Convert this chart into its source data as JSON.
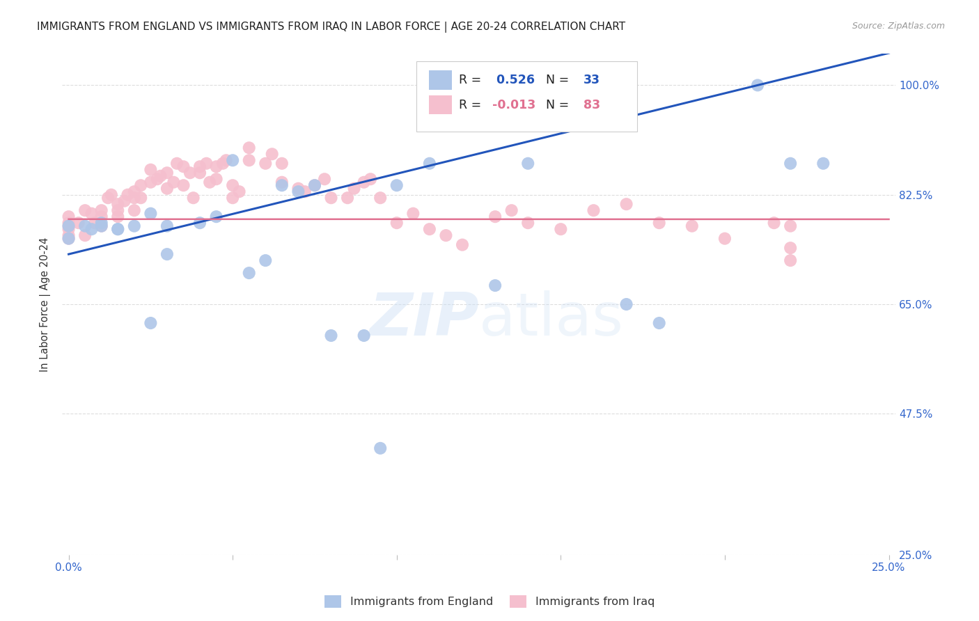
{
  "title": "IMMIGRANTS FROM ENGLAND VS IMMIGRANTS FROM IRAQ IN LABOR FORCE | AGE 20-24 CORRELATION CHART",
  "source": "Source: ZipAtlas.com",
  "ylabel": "In Labor Force | Age 20-24",
  "xlim": [
    0.0,
    0.25
  ],
  "ylim": [
    0.25,
    1.05
  ],
  "ytick_vals": [
    0.25,
    0.475,
    0.65,
    0.825,
    1.0
  ],
  "ytick_labels": [
    "25.0%",
    "47.5%",
    "65.0%",
    "82.5%",
    "100.0%"
  ],
  "england_R": 0.526,
  "england_N": 33,
  "iraq_R": -0.013,
  "iraq_N": 83,
  "england_color": "#aec6e8",
  "iraq_color": "#f5bfce",
  "england_line_color": "#2255bb",
  "iraq_line_color": "#e07090",
  "england_x": [
    0.0,
    0.0,
    0.005,
    0.007,
    0.01,
    0.01,
    0.015,
    0.015,
    0.02,
    0.025,
    0.025,
    0.03,
    0.03,
    0.04,
    0.045,
    0.05,
    0.055,
    0.06,
    0.065,
    0.07,
    0.075,
    0.08,
    0.09,
    0.095,
    0.1,
    0.11,
    0.13,
    0.14,
    0.17,
    0.18,
    0.21,
    0.22,
    0.23
  ],
  "england_y": [
    0.775,
    0.755,
    0.775,
    0.77,
    0.775,
    0.78,
    0.77,
    0.77,
    0.775,
    0.795,
    0.62,
    0.775,
    0.73,
    0.78,
    0.79,
    0.88,
    0.7,
    0.72,
    0.84,
    0.83,
    0.84,
    0.6,
    0.6,
    0.42,
    0.84,
    0.875,
    0.68,
    0.875,
    0.65,
    0.62,
    1.0,
    0.875,
    0.875
  ],
  "iraq_x": [
    0.0,
    0.0,
    0.0,
    0.0,
    0.0,
    0.0,
    0.003,
    0.005,
    0.005,
    0.007,
    0.008,
    0.01,
    0.01,
    0.01,
    0.012,
    0.013,
    0.015,
    0.015,
    0.015,
    0.017,
    0.018,
    0.02,
    0.02,
    0.02,
    0.022,
    0.022,
    0.025,
    0.025,
    0.027,
    0.028,
    0.03,
    0.03,
    0.032,
    0.033,
    0.035,
    0.035,
    0.037,
    0.038,
    0.04,
    0.04,
    0.042,
    0.043,
    0.045,
    0.045,
    0.047,
    0.048,
    0.05,
    0.05,
    0.052,
    0.055,
    0.055,
    0.06,
    0.062,
    0.065,
    0.065,
    0.07,
    0.072,
    0.075,
    0.078,
    0.08,
    0.085,
    0.087,
    0.09,
    0.092,
    0.095,
    0.1,
    0.105,
    0.11,
    0.115,
    0.12,
    0.13,
    0.135,
    0.14,
    0.15,
    0.16,
    0.17,
    0.18,
    0.19,
    0.2,
    0.22,
    0.22,
    0.215,
    0.22
  ],
  "iraq_y": [
    0.78,
    0.77,
    0.76,
    0.755,
    0.775,
    0.79,
    0.78,
    0.8,
    0.76,
    0.795,
    0.78,
    0.79,
    0.775,
    0.8,
    0.82,
    0.825,
    0.8,
    0.81,
    0.79,
    0.815,
    0.825,
    0.83,
    0.82,
    0.8,
    0.84,
    0.82,
    0.845,
    0.865,
    0.85,
    0.855,
    0.86,
    0.835,
    0.845,
    0.875,
    0.87,
    0.84,
    0.86,
    0.82,
    0.87,
    0.86,
    0.875,
    0.845,
    0.85,
    0.87,
    0.875,
    0.88,
    0.82,
    0.84,
    0.83,
    0.9,
    0.88,
    0.875,
    0.89,
    0.845,
    0.875,
    0.835,
    0.83,
    0.84,
    0.85,
    0.82,
    0.82,
    0.835,
    0.845,
    0.85,
    0.82,
    0.78,
    0.795,
    0.77,
    0.76,
    0.745,
    0.79,
    0.8,
    0.78,
    0.77,
    0.8,
    0.81,
    0.78,
    0.775,
    0.755,
    0.775,
    0.72,
    0.78,
    0.74
  ]
}
